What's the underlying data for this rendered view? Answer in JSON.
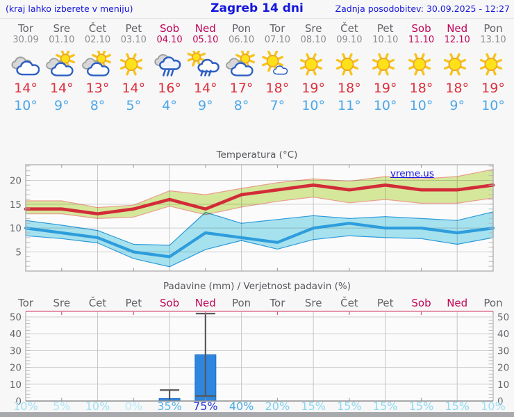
{
  "header": {
    "hint": "(kraj lahko izberete v meniju)",
    "title": "Zagreb 14 dni",
    "updated": "Zadnja posodobitev: 30.09.2025 - 12:27"
  },
  "days": [
    {
      "name": "Tor",
      "date": "30.09",
      "weekend": false,
      "icon": "cloudy",
      "tmax": "14°",
      "tmin": "10°",
      "prob": "10%",
      "prob_color": "#9fe0f4"
    },
    {
      "name": "Sre",
      "date": "01.10",
      "weekend": false,
      "icon": "partly-cloudy",
      "tmax": "14°",
      "tmin": "9°",
      "prob": "5%",
      "prob_color": "#aee7f7"
    },
    {
      "name": "Čet",
      "date": "02.10",
      "weekend": false,
      "icon": "partly-cloudy",
      "tmax": "13°",
      "tmin": "8°",
      "prob": "10%",
      "prob_color": "#9fe0f4"
    },
    {
      "name": "Pet",
      "date": "03.10",
      "weekend": false,
      "icon": "sunny",
      "tmax": "14°",
      "tmin": "5°",
      "prob": "0%",
      "prob_color": "#b7eaf8"
    },
    {
      "name": "Sob",
      "date": "04.10",
      "weekend": true,
      "icon": "rain",
      "tmax": "16°",
      "tmin": "4°",
      "prob": "35%",
      "prob_color": "#58b3e8"
    },
    {
      "name": "Ned",
      "date": "05.10",
      "weekend": true,
      "icon": "sun-shower",
      "tmax": "14°",
      "tmin": "9°",
      "prob": "75%",
      "prob_color": "#2434d6"
    },
    {
      "name": "Pon",
      "date": "06.10",
      "weekend": false,
      "icon": "partly-cloudy",
      "tmax": "17°",
      "tmin": "8°",
      "prob": "40%",
      "prob_color": "#4aabe5"
    },
    {
      "name": "Tor",
      "date": "07.10",
      "weekend": false,
      "icon": "mostly-sunny",
      "tmax": "18°",
      "tmin": "7°",
      "prob": "20%",
      "prob_color": "#7bd1ee"
    },
    {
      "name": "Sre",
      "date": "08.10",
      "weekend": false,
      "icon": "sunny",
      "tmax": "19°",
      "tmin": "10°",
      "prob": "15%",
      "prob_color": "#8bd9f1"
    },
    {
      "name": "Čet",
      "date": "09.10",
      "weekend": false,
      "icon": "sunny",
      "tmax": "18°",
      "tmin": "11°",
      "prob": "15%",
      "prob_color": "#8bd9f1"
    },
    {
      "name": "Pet",
      "date": "10.10",
      "weekend": false,
      "icon": "sunny",
      "tmax": "19°",
      "tmin": "10°",
      "prob": "15%",
      "prob_color": "#8bd9f1"
    },
    {
      "name": "Sob",
      "date": "11.10",
      "weekend": true,
      "icon": "sunny",
      "tmax": "18°",
      "tmin": "10°",
      "prob": "15%",
      "prob_color": "#8bd9f1"
    },
    {
      "name": "Ned",
      "date": "12.10",
      "weekend": true,
      "icon": "sunny",
      "tmax": "18°",
      "tmin": "9°",
      "prob": "15%",
      "prob_color": "#8bd9f1"
    },
    {
      "name": "Pon",
      "date": "13.10",
      "weekend": false,
      "icon": "sunny",
      "tmax": "19°",
      "tmin": "10°",
      "prob": "10%",
      "prob_color": "#9fe0f4"
    }
  ],
  "chart_data": [
    {
      "type": "line",
      "title": "Temperatura (°C)",
      "watermark": "vreme.us",
      "categories": [
        "Tor 30.09",
        "Sre 01.10",
        "Čet 02.10",
        "Pet 03.10",
        "Sob 04.10",
        "Ned 05.10",
        "Pon 06.10",
        "Tor 07.10",
        "Sre 08.10",
        "Čet 09.10",
        "Pet 10.10",
        "Sob 11.10",
        "Ned 12.10",
        "Pon 13.10"
      ],
      "ylim": [
        1,
        23.3
      ],
      "yticks": [
        5,
        10,
        15,
        20
      ],
      "grid": true,
      "series": [
        {
          "name": "max",
          "color": "#d22c38",
          "band_color": "#d9eb9d",
          "band_edge": "#efa190",
          "values": [
            14,
            14,
            13,
            14,
            16,
            14,
            17,
            18,
            19,
            18,
            19,
            18,
            18,
            19
          ],
          "band_upper": [
            15.7,
            15.7,
            14.3,
            14.8,
            17.8,
            17.0,
            18.3,
            19.5,
            20.3,
            19.8,
            20.8,
            20.3,
            20.8,
            22.3
          ],
          "band_lower": [
            13.0,
            13.0,
            12.0,
            12.3,
            14.6,
            12.8,
            14.4,
            15.6,
            16.5,
            15.3,
            16.0,
            15.2,
            15.2,
            16.3
          ]
        },
        {
          "name": "min",
          "color": "#2d9ddc",
          "band_color": "#a9e5f1",
          "band_edge": "#2d9ddc",
          "values": [
            10,
            9,
            8,
            5,
            4,
            9,
            8,
            7,
            10,
            11,
            10,
            10,
            9,
            10
          ],
          "band_upper": [
            11.6,
            10.6,
            9.5,
            6.6,
            6.4,
            13.3,
            11.0,
            11.8,
            12.6,
            12.0,
            12.4,
            12.0,
            11.6,
            13.4
          ],
          "band_lower": [
            8.4,
            7.8,
            6.9,
            3.6,
            1.9,
            5.5,
            7.4,
            5.6,
            7.6,
            8.4,
            8.0,
            7.8,
            6.6,
            8.0
          ]
        }
      ]
    },
    {
      "type": "bar",
      "title": "Padavine (mm) / Verjetnost padavin (%)",
      "categories": [
        "Tor",
        "Sre",
        "Čet",
        "Pet",
        "Sob",
        "Ned",
        "Pon",
        "Tor",
        "Sre",
        "Čet",
        "Pet",
        "Sob",
        "Ned",
        "Pon"
      ],
      "values": [
        0,
        0,
        0,
        0,
        1.5,
        27.5,
        0,
        0,
        0,
        0,
        0,
        0,
        0,
        0
      ],
      "whiskers": [
        null,
        null,
        null,
        null,
        {
          "lo": 0,
          "hi": 6.5
        },
        {
          "lo": 3,
          "hi": 52
        },
        null,
        null,
        null,
        null,
        null,
        null,
        null,
        null
      ],
      "probabilities_pct": [
        10,
        5,
        10,
        0,
        35,
        75,
        40,
        20,
        15,
        15,
        15,
        15,
        15,
        10
      ],
      "ylim": [
        0,
        50
      ],
      "yticks": [
        0,
        10,
        20,
        30,
        40,
        50
      ],
      "bar_color": "#2e86de",
      "whisker_color": "#57585a",
      "grid": true
    }
  ],
  "colors": {
    "accent_blue": "#1515dd",
    "weekend": "#c00355",
    "tmax_text": "#dd2f3b",
    "tmin_text": "#4ba7e8",
    "top_axis_pink": "#df7492"
  }
}
